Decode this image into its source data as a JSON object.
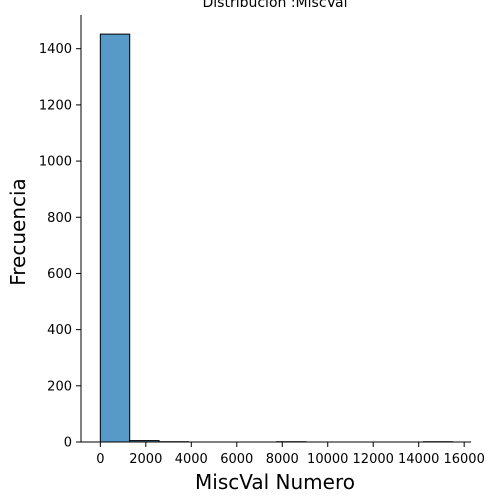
{
  "chart_data": {
    "type": "bar",
    "title": "Distribución :MiscVal",
    "xlabel": "MiscVal Numero",
    "ylabel": "Frecuencia",
    "xlim": [
      -850,
      16300
    ],
    "ylim": [
      0,
      1520
    ],
    "bin_width": 1292,
    "bins": [
      {
        "x0": 0,
        "x1": 1292,
        "count": 1452
      },
      {
        "x0": 1292,
        "x1": 2583,
        "count": 5
      },
      {
        "x0": 2583,
        "x1": 3875,
        "count": 1
      },
      {
        "x0": 3875,
        "x1": 5167,
        "count": 0
      },
      {
        "x0": 5167,
        "x1": 6458,
        "count": 0
      },
      {
        "x0": 6458,
        "x1": 7750,
        "count": 0
      },
      {
        "x0": 7750,
        "x1": 9042,
        "count": 1
      },
      {
        "x0": 9042,
        "x1": 10333,
        "count": 0
      },
      {
        "x0": 10333,
        "x1": 11625,
        "count": 0
      },
      {
        "x0": 11625,
        "x1": 12917,
        "count": 0
      },
      {
        "x0": 12917,
        "x1": 14208,
        "count": 0
      },
      {
        "x0": 14208,
        "x1": 15500,
        "count": 1
      }
    ],
    "x_ticks": [
      0,
      2000,
      4000,
      6000,
      8000,
      10000,
      12000,
      14000,
      16000
    ],
    "y_ticks": [
      0,
      200,
      400,
      600,
      800,
      1000,
      1200,
      1400
    ],
    "bar_color": "#5799c7",
    "edge_color": "#000000",
    "grid": false,
    "legend": "none"
  }
}
